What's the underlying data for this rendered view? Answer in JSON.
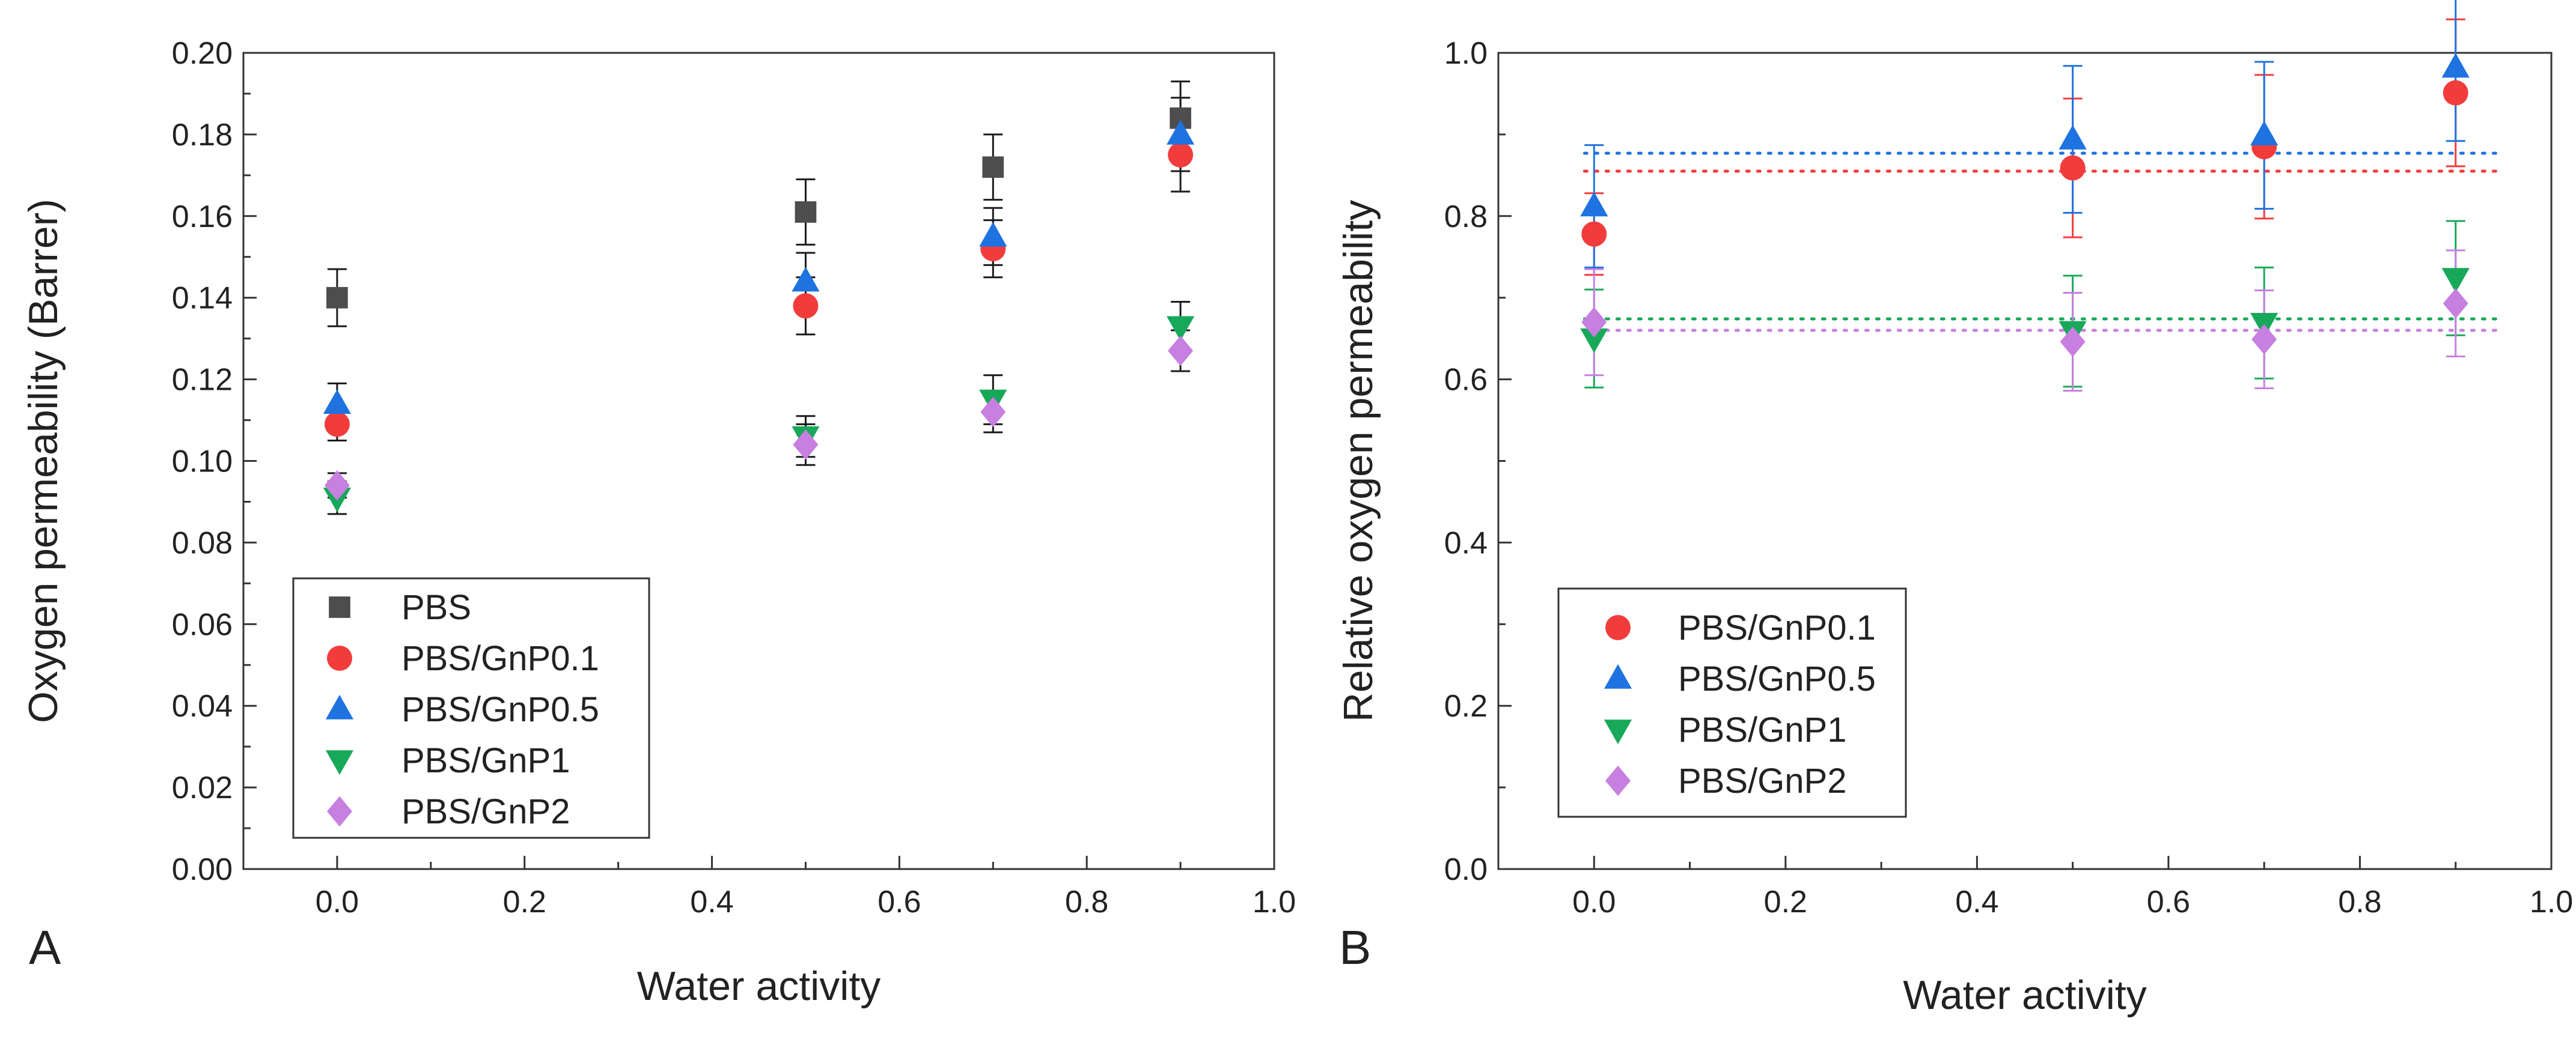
{
  "chart_data": [
    {
      "type": "scatter",
      "panel_label": "A",
      "xlabel": "Water activity",
      "ylabel": "Oxygen permeability (Barrer)",
      "xlim": [
        -0.1,
        1.0
      ],
      "ylim": [
        0.0,
        0.2
      ],
      "xticks": [
        0.0,
        0.2,
        0.4,
        0.6,
        0.8,
        1.0
      ],
      "xtick_labels": [
        "0.0",
        "0.2",
        "0.4",
        "0.6",
        "0.8",
        "1.0"
      ],
      "yticks": [
        0.0,
        0.02,
        0.04,
        0.06,
        0.08,
        0.1,
        0.12,
        0.14,
        0.16,
        0.18,
        0.2
      ],
      "ytick_labels": [
        "0.00",
        "0.02",
        "0.04",
        "0.06",
        "0.08",
        "0.10",
        "0.12",
        "0.14",
        "0.16",
        "0.18",
        "0.20"
      ],
      "legend_position": "bottom-left",
      "grid": false,
      "series": [
        {
          "name": "PBS",
          "marker": "square",
          "color": "#4d4d4d",
          "error_color": "#1a1a1a",
          "x": [
            0.0,
            0.5,
            0.7,
            0.9
          ],
          "y": [
            0.14,
            0.161,
            0.172,
            0.184
          ],
          "err": [
            0.007,
            0.008,
            0.008,
            0.009
          ]
        },
        {
          "name": "PBS/GnP0.1",
          "marker": "circle",
          "color": "#f23c3c",
          "error_color": "#1a1a1a",
          "x": [
            0.0,
            0.5,
            0.7,
            0.9
          ],
          "y": [
            0.109,
            0.138,
            0.152,
            0.175
          ],
          "err": [
            0.004,
            0.007,
            0.007,
            0.009
          ]
        },
        {
          "name": "PBS/GnP0.5",
          "marker": "triangle-up",
          "color": "#1f73e0",
          "error_color": "#1a1a1a",
          "x": [
            0.0,
            0.5,
            0.7,
            0.9
          ],
          "y": [
            0.114,
            0.144,
            0.155,
            0.18
          ],
          "err": [
            0.005,
            0.007,
            0.007,
            0.009
          ]
        },
        {
          "name": "PBS/GnP1",
          "marker": "triangle-down",
          "color": "#18a85a",
          "error_color": "#1a1a1a",
          "x": [
            0.0,
            0.5,
            0.7,
            0.9
          ],
          "y": [
            0.091,
            0.106,
            0.115,
            0.133
          ],
          "err": [
            0.004,
            0.005,
            0.006,
            0.006
          ]
        },
        {
          "name": "PBS/GnP2",
          "marker": "diamond",
          "color": "#c77fe0",
          "error_color": "#1a1a1a",
          "x": [
            0.0,
            0.5,
            0.7,
            0.9
          ],
          "y": [
            0.094,
            0.104,
            0.112,
            0.127
          ],
          "err": [
            0.003,
            0.005,
            0.005,
            0.005
          ]
        }
      ]
    },
    {
      "type": "scatter",
      "panel_label": "B",
      "xlabel": "Water activity",
      "ylabel": "Relative oxygen permeability",
      "xlim": [
        -0.1,
        1.0
      ],
      "ylim": [
        0.0,
        1.0
      ],
      "xticks": [
        0.0,
        0.2,
        0.4,
        0.6,
        0.8,
        1.0
      ],
      "xtick_labels": [
        "0.0",
        "0.2",
        "0.4",
        "0.6",
        "0.8",
        "1.0"
      ],
      "yticks": [
        0.0,
        0.2,
        0.4,
        0.6,
        0.8,
        1.0
      ],
      "ytick_labels": [
        "0.0",
        "0.2",
        "0.4",
        "0.6",
        "0.8",
        "1.0"
      ],
      "legend_position": "bottom-left",
      "grid": false,
      "series": [
        {
          "name": "PBS/GnP0.1",
          "marker": "circle",
          "color": "#f23c3c",
          "error_color": "#f23c3c",
          "x": [
            0.0,
            0.5,
            0.7,
            0.9
          ],
          "y": [
            0.778,
            0.859,
            0.885,
            0.951
          ],
          "err": [
            0.05,
            0.085,
            0.088,
            0.09
          ],
          "mean_line": 0.855
        },
        {
          "name": "PBS/GnP0.5",
          "marker": "triangle-up",
          "color": "#1f73e0",
          "error_color": "#1f73e0",
          "x": [
            0.0,
            0.5,
            0.7,
            0.9
          ],
          "y": [
            0.812,
            0.894,
            0.899,
            0.982
          ],
          "err": [
            0.075,
            0.09,
            0.09,
            0.09
          ],
          "mean_line": 0.877
        },
        {
          "name": "PBS/GnP1",
          "marker": "triangle-down",
          "color": "#18a85a",
          "error_color": "#18a85a",
          "x": [
            0.0,
            0.5,
            0.7,
            0.9
          ],
          "y": [
            0.65,
            0.659,
            0.669,
            0.724
          ],
          "err": [
            0.06,
            0.068,
            0.068,
            0.07
          ],
          "mean_line": 0.674
        },
        {
          "name": "PBS/GnP2",
          "marker": "diamond",
          "color": "#c77fe0",
          "error_color": "#c77fe0",
          "x": [
            0.0,
            0.5,
            0.7,
            0.9
          ],
          "y": [
            0.67,
            0.646,
            0.649,
            0.693
          ],
          "err": [
            0.065,
            0.06,
            0.06,
            0.065
          ],
          "mean_line": 0.66
        }
      ]
    }
  ]
}
